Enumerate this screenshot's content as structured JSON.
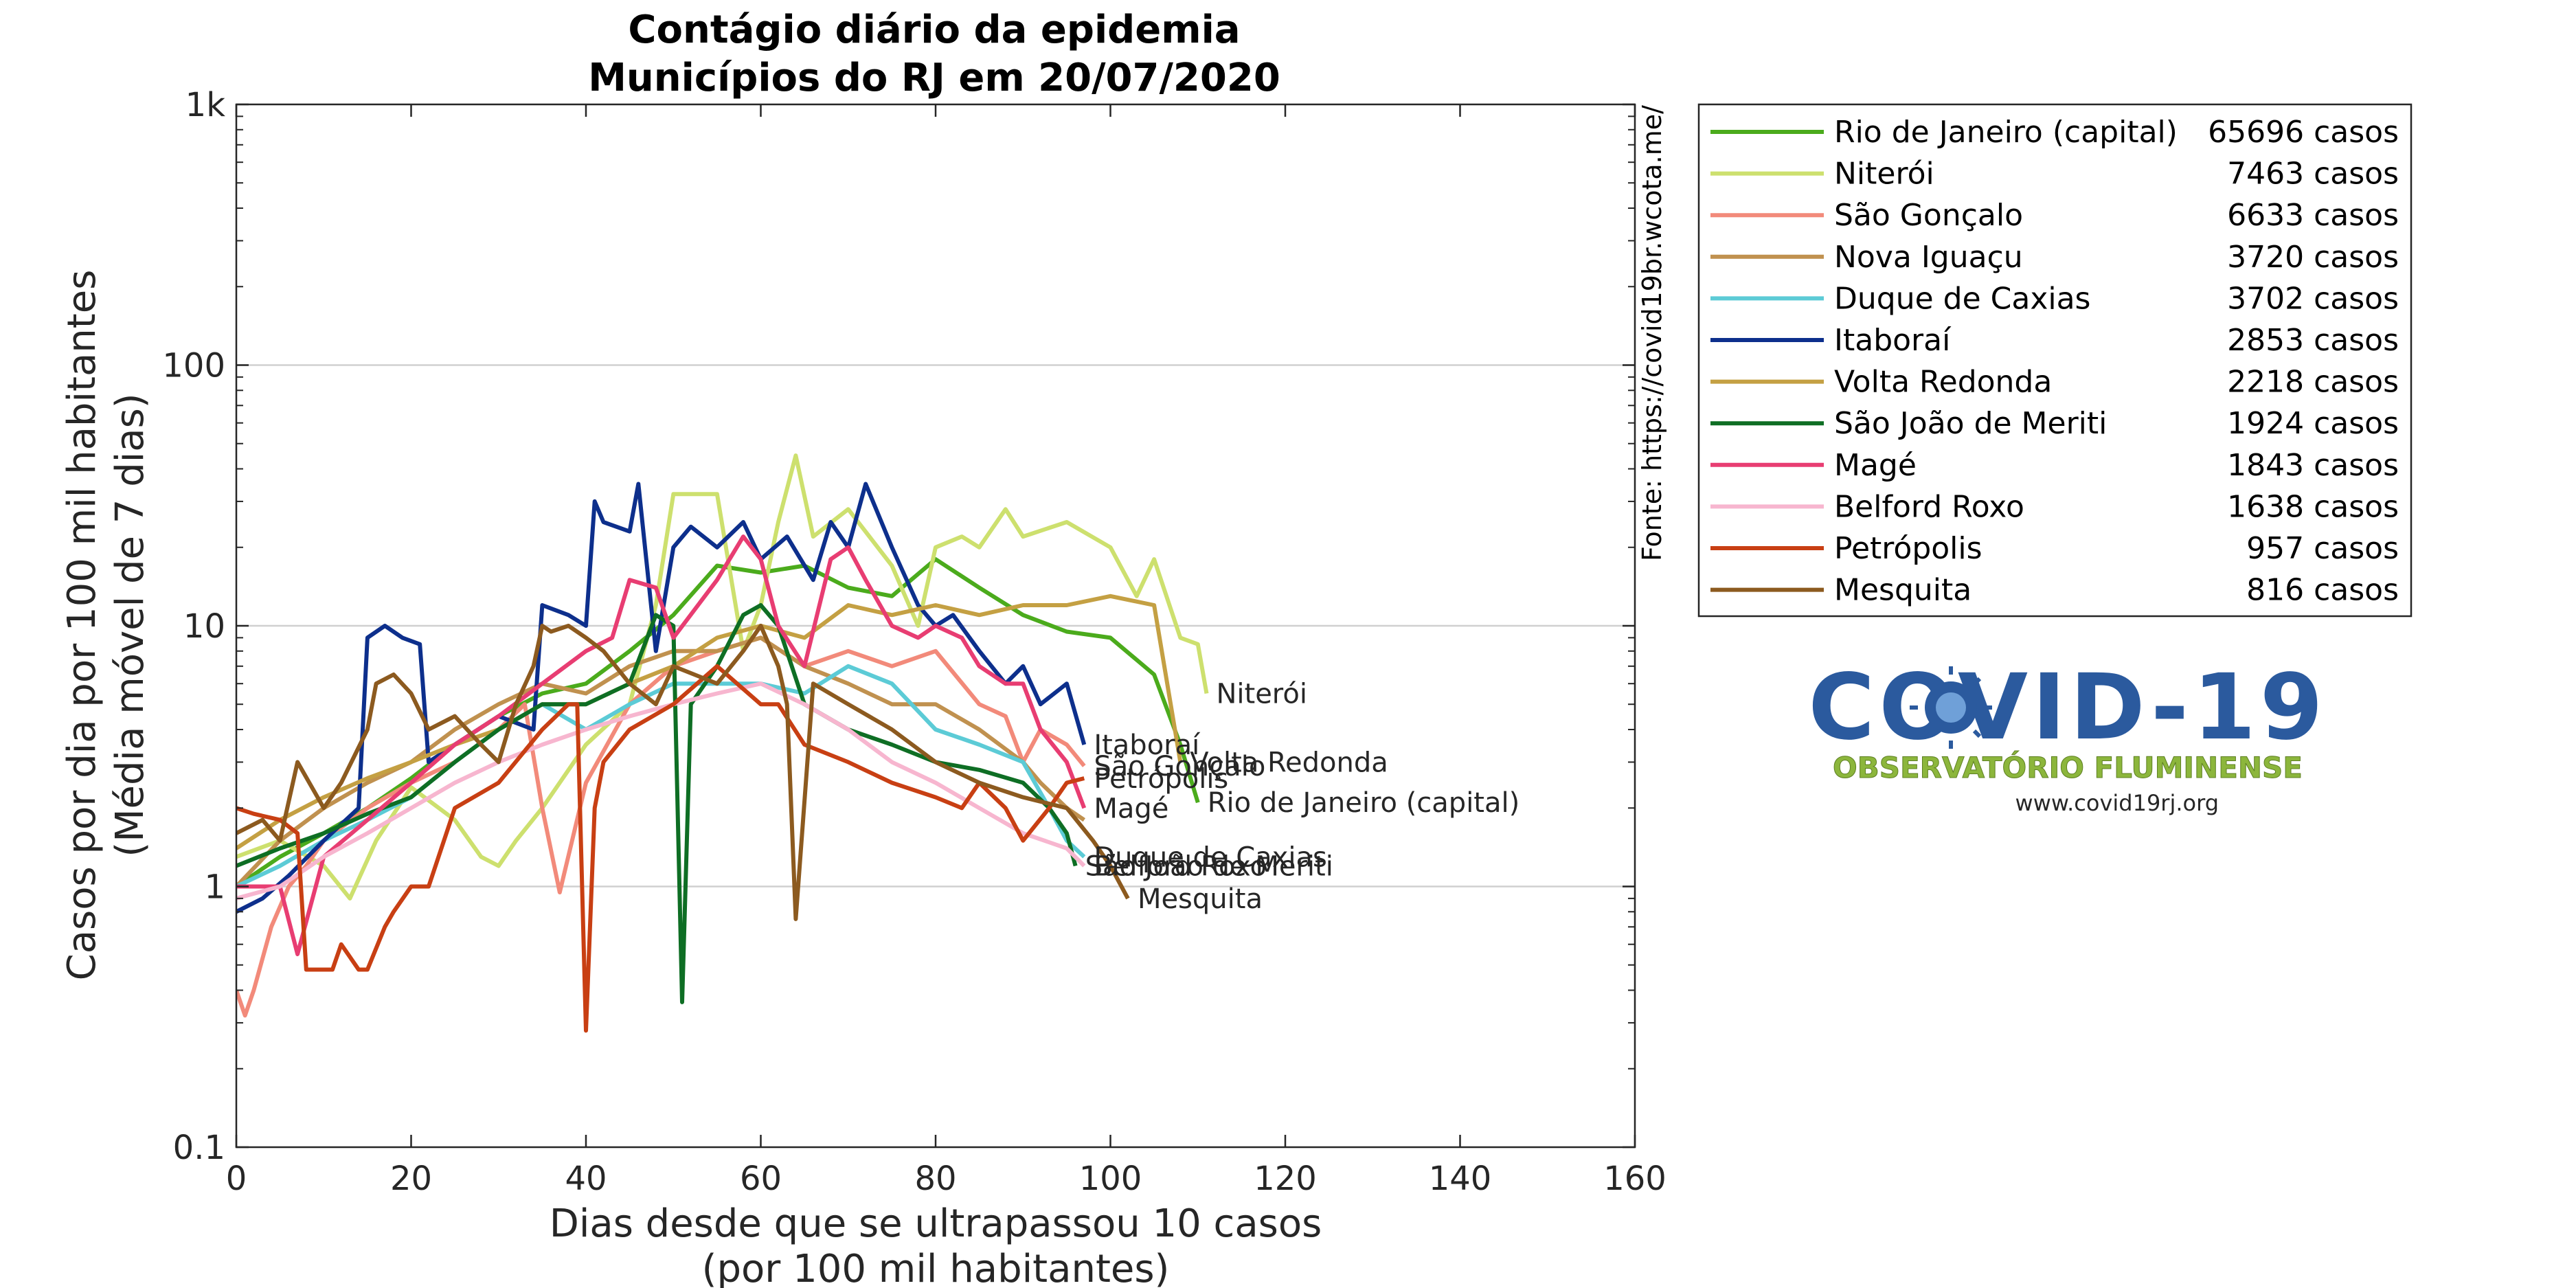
{
  "chart_data": {
    "type": "line",
    "title_lines": [
      "Contágio diário da epidemia",
      "Municípios do RJ em 20/07/2020"
    ],
    "xlabel_lines": [
      "Dias desde que se ultrapassou 10 casos",
      "(por 100 mil habitantes)"
    ],
    "ylabel_lines": [
      "Casos por dia por 100 mil habitantes",
      "(Média móvel de 7 dias)"
    ],
    "xlim": [
      0,
      160
    ],
    "ylim": [
      0.1,
      1000
    ],
    "yscale": "log",
    "grid": "horizontal",
    "x_ticks": [
      0,
      20,
      40,
      60,
      80,
      100,
      120,
      140,
      160
    ],
    "x_tick_labels": [
      "0",
      "20",
      "40",
      "60",
      "80",
      "100",
      "120",
      "140",
      "160"
    ],
    "y_ticks": [
      0.1,
      1,
      10,
      100,
      1000
    ],
    "y_tick_labels": [
      "0.1",
      "1",
      "10",
      "100",
      "1k"
    ],
    "source_text": "Fonte: https://covid19br.wcota.me/",
    "legend_position": "right",
    "series": [
      {
        "name": "Rio de Janeiro (capital)",
        "cases_label": "65696 casos",
        "color": "#4bab1c",
        "end_label": "Rio de Janeiro (capital)",
        "x": [
          0,
          5,
          10,
          15,
          20,
          25,
          30,
          35,
          40,
          45,
          50,
          55,
          60,
          65,
          70,
          75,
          80,
          85,
          90,
          95,
          100,
          105,
          108,
          110
        ],
        "y": [
          1.0,
          1.3,
          1.6,
          2.0,
          2.6,
          3.5,
          4.5,
          5.5,
          6.0,
          8.0,
          11,
          17,
          16,
          17,
          14,
          13,
          18,
          14,
          11,
          9.5,
          9.0,
          6.5,
          3.5,
          2.1
        ]
      },
      {
        "name": "Niterói",
        "cases_label": "7463 casos",
        "color": "#cde06e",
        "end_label": "Niterói",
        "x": [
          0,
          5,
          10,
          13,
          16,
          20,
          25,
          28,
          30,
          32,
          35,
          40,
          45,
          48,
          50,
          55,
          58,
          60,
          62,
          64,
          66,
          70,
          75,
          78,
          80,
          83,
          85,
          88,
          90,
          95,
          100,
          103,
          105,
          108,
          110,
          111
        ],
        "y": [
          1.3,
          1.5,
          1.2,
          0.9,
          1.5,
          2.4,
          1.8,
          1.3,
          1.2,
          1.5,
          2.0,
          3.5,
          5.0,
          12,
          32,
          32,
          8.0,
          12,
          25,
          45,
          22,
          28,
          17,
          10,
          20,
          22,
          20,
          28,
          22,
          25,
          20,
          13,
          18,
          9,
          8.5,
          5.5
        ]
      },
      {
        "name": "São Gonçalo",
        "cases_label": "6633 casos",
        "color": "#f28a7a",
        "end_label": "São Gonçalo",
        "x": [
          0,
          1,
          2,
          4,
          6,
          8,
          10,
          15,
          20,
          25,
          30,
          33,
          35,
          37,
          40,
          45,
          50,
          55,
          60,
          65,
          70,
          75,
          80,
          85,
          88,
          90,
          92,
          95,
          97
        ],
        "y": [
          0.4,
          0.32,
          0.4,
          0.7,
          1.0,
          1.2,
          1.5,
          2.0,
          2.5,
          3.0,
          4.0,
          5.0,
          2.0,
          0.95,
          2.5,
          5.0,
          7.0,
          8.0,
          9.0,
          7.0,
          8.0,
          7.0,
          8.0,
          5.0,
          4.5,
          3.0,
          4.0,
          3.5,
          2.9
        ]
      },
      {
        "name": "Nova Iguaçu",
        "cases_label": "3720 casos",
        "color": "#c0914f",
        "end_label": "",
        "x": [
          0,
          5,
          10,
          15,
          20,
          25,
          30,
          35,
          40,
          45,
          50,
          55,
          60,
          65,
          70,
          75,
          80,
          85,
          90,
          92,
          95,
          97
        ],
        "y": [
          1.0,
          1.5,
          2.0,
          2.5,
          3.0,
          4.0,
          5.0,
          6.0,
          5.5,
          7.0,
          8.0,
          8.0,
          9.0,
          7.0,
          6.0,
          5.0,
          5.0,
          4.0,
          3.0,
          2.5,
          2.0,
          1.8
        ]
      },
      {
        "name": "Duque de Caxias",
        "cases_label": "3702 casos",
        "color": "#5ccbd6",
        "end_label": "Duque de Caxias",
        "x": [
          0,
          5,
          10,
          15,
          20,
          25,
          30,
          35,
          40,
          45,
          50,
          55,
          60,
          65,
          70,
          75,
          80,
          85,
          90,
          93,
          95,
          97
        ],
        "y": [
          1.0,
          1.2,
          1.5,
          1.8,
          2.2,
          3.0,
          4.0,
          5.0,
          4.0,
          5.0,
          6.0,
          6.0,
          6.0,
          5.5,
          7.0,
          6.0,
          4.0,
          3.5,
          3.0,
          2.0,
          1.5,
          1.3
        ]
      },
      {
        "name": "Itaboraí",
        "cases_label": "2853 casos",
        "color": "#0d2f8c",
        "end_label": "Itaboraí",
        "x": [
          0,
          3,
          6,
          10,
          14,
          15,
          17,
          19,
          21,
          22,
          25,
          30,
          34,
          35,
          38,
          40,
          41,
          42,
          45,
          46,
          48,
          50,
          52,
          55,
          58,
          60,
          63,
          66,
          68,
          70,
          72,
          75,
          78,
          80,
          82,
          85,
          88,
          90,
          92,
          95,
          97
        ],
        "y": [
          0.8,
          0.9,
          1.1,
          1.5,
          2.0,
          9.0,
          10,
          9.0,
          8.5,
          3.0,
          3.5,
          4.5,
          4.0,
          12,
          11,
          10,
          30,
          25,
          23,
          35,
          8.0,
          20,
          24,
          20,
          25,
          18,
          22,
          15,
          25,
          20,
          35,
          20,
          12,
          10,
          11,
          8.0,
          6.0,
          7.0,
          5.0,
          6.0,
          3.5
        ]
      },
      {
        "name": "Volta Redonda",
        "cases_label": "2218 casos",
        "color": "#c4a043",
        "end_label": "Volta Redonda",
        "x": [
          0,
          5,
          10,
          15,
          20,
          25,
          30,
          35,
          40,
          45,
          50,
          55,
          60,
          65,
          70,
          75,
          80,
          85,
          90,
          95,
          100,
          105,
          108
        ],
        "y": [
          1.4,
          1.8,
          2.2,
          2.6,
          3.0,
          3.5,
          4.0,
          5.0,
          5.0,
          6.0,
          7.0,
          9.0,
          10,
          9.0,
          12,
          11,
          12,
          11,
          12,
          12,
          13,
          12,
          3.0
        ]
      },
      {
        "name": "São João de Meriti",
        "cases_label": "1924 casos",
        "color": "#0e6e24",
        "end_label": "São João de Meriti",
        "x": [
          0,
          5,
          10,
          15,
          20,
          25,
          30,
          35,
          40,
          45,
          48,
          50,
          51,
          52,
          55,
          58,
          60,
          62,
          65,
          70,
          75,
          80,
          85,
          90,
          93,
          95,
          96
        ],
        "y": [
          1.2,
          1.4,
          1.6,
          1.9,
          2.2,
          3.0,
          4.0,
          5.0,
          5.0,
          6.0,
          11,
          10,
          0.36,
          5.0,
          7.0,
          11,
          12,
          10,
          5.0,
          4.0,
          3.5,
          3.0,
          2.8,
          2.5,
          2.0,
          1.6,
          1.2
        ]
      },
      {
        "name": "Magé",
        "cases_label": "1843 casos",
        "color": "#e83d72",
        "end_label": "Magé",
        "x": [
          0,
          5,
          7,
          10,
          15,
          20,
          25,
          30,
          35,
          40,
          43,
          45,
          48,
          50,
          55,
          58,
          60,
          62,
          65,
          68,
          70,
          72,
          75,
          78,
          80,
          83,
          85,
          88,
          90,
          92,
          95,
          97
        ],
        "y": [
          1.0,
          1.0,
          0.55,
          1.3,
          1.8,
          2.5,
          3.5,
          4.5,
          6.0,
          8.0,
          9.0,
          15,
          14,
          9.0,
          15,
          22,
          18,
          10,
          7.0,
          18,
          20,
          15,
          10,
          9.0,
          10,
          9.0,
          7.0,
          6.0,
          6.0,
          4.0,
          3.0,
          2.0
        ]
      },
      {
        "name": "Belford Roxo",
        "cases_label": "1638 casos",
        "color": "#f7b6cf",
        "end_label": "Belford Roxo",
        "x": [
          0,
          5,
          10,
          15,
          20,
          25,
          30,
          35,
          40,
          45,
          50,
          55,
          60,
          65,
          70,
          75,
          80,
          85,
          90,
          95,
          97
        ],
        "y": [
          0.9,
          1.0,
          1.3,
          1.6,
          2.0,
          2.5,
          3.0,
          3.5,
          4.0,
          4.5,
          5.0,
          5.5,
          6.0,
          5.0,
          4.0,
          3.0,
          2.5,
          2.0,
          1.6,
          1.4,
          1.2
        ]
      },
      {
        "name": "Petrópolis",
        "cases_label": "957 casos",
        "color": "#c83f13",
        "end_label": "Petrópolis",
        "x": [
          0,
          2,
          5,
          7,
          8,
          9,
          10,
          11,
          12,
          14,
          15,
          17,
          18,
          20,
          22,
          25,
          30,
          35,
          38,
          39,
          40,
          41,
          42,
          45,
          50,
          55,
          60,
          62,
          65,
          70,
          75,
          80,
          83,
          85,
          88,
          90,
          93,
          95,
          97
        ],
        "y": [
          2.0,
          1.9,
          1.8,
          1.6,
          0.48,
          0.48,
          0.48,
          0.48,
          0.6,
          0.48,
          0.48,
          0.7,
          0.8,
          1.0,
          1.0,
          2.0,
          2.5,
          4.0,
          5.0,
          5.0,
          0.28,
          2.0,
          3.0,
          4.0,
          5.0,
          7.0,
          5.0,
          5.0,
          3.5,
          3.0,
          2.5,
          2.2,
          2.0,
          2.5,
          2.0,
          1.5,
          2.0,
          2.5,
          2.6
        ]
      },
      {
        "name": "Mesquita",
        "cases_label": "816 casos",
        "color": "#8c5a1f",
        "end_label": "Mesquita",
        "x": [
          0,
          3,
          5,
          7,
          10,
          12,
          15,
          16,
          18,
          20,
          22,
          25,
          28,
          30,
          32,
          34,
          35,
          36,
          38,
          40,
          42,
          45,
          48,
          50,
          55,
          58,
          60,
          62,
          63,
          64,
          66,
          70,
          75,
          80,
          85,
          90,
          95,
          98,
          100,
          102
        ],
        "y": [
          1.6,
          1.8,
          1.5,
          3.0,
          2.0,
          2.5,
          4.0,
          6.0,
          6.5,
          5.5,
          4.0,
          4.5,
          3.5,
          3.0,
          5.0,
          7.0,
          10,
          9.5,
          10,
          9.0,
          8.0,
          6.0,
          5.0,
          7.0,
          6.0,
          8.0,
          10,
          7.0,
          5.0,
          0.75,
          6.0,
          5.0,
          4.0,
          3.0,
          2.5,
          2.2,
          2.0,
          1.5,
          1.2,
          0.9
        ]
      }
    ]
  },
  "logo": {
    "main_text": "COVID-19",
    "subtitle": "OBSERVATÓRIO FLUMINENSE",
    "url": "www.covid19rj.org",
    "primary_color": "#2b5a9e",
    "secondary_color": "#8cb63c"
  }
}
